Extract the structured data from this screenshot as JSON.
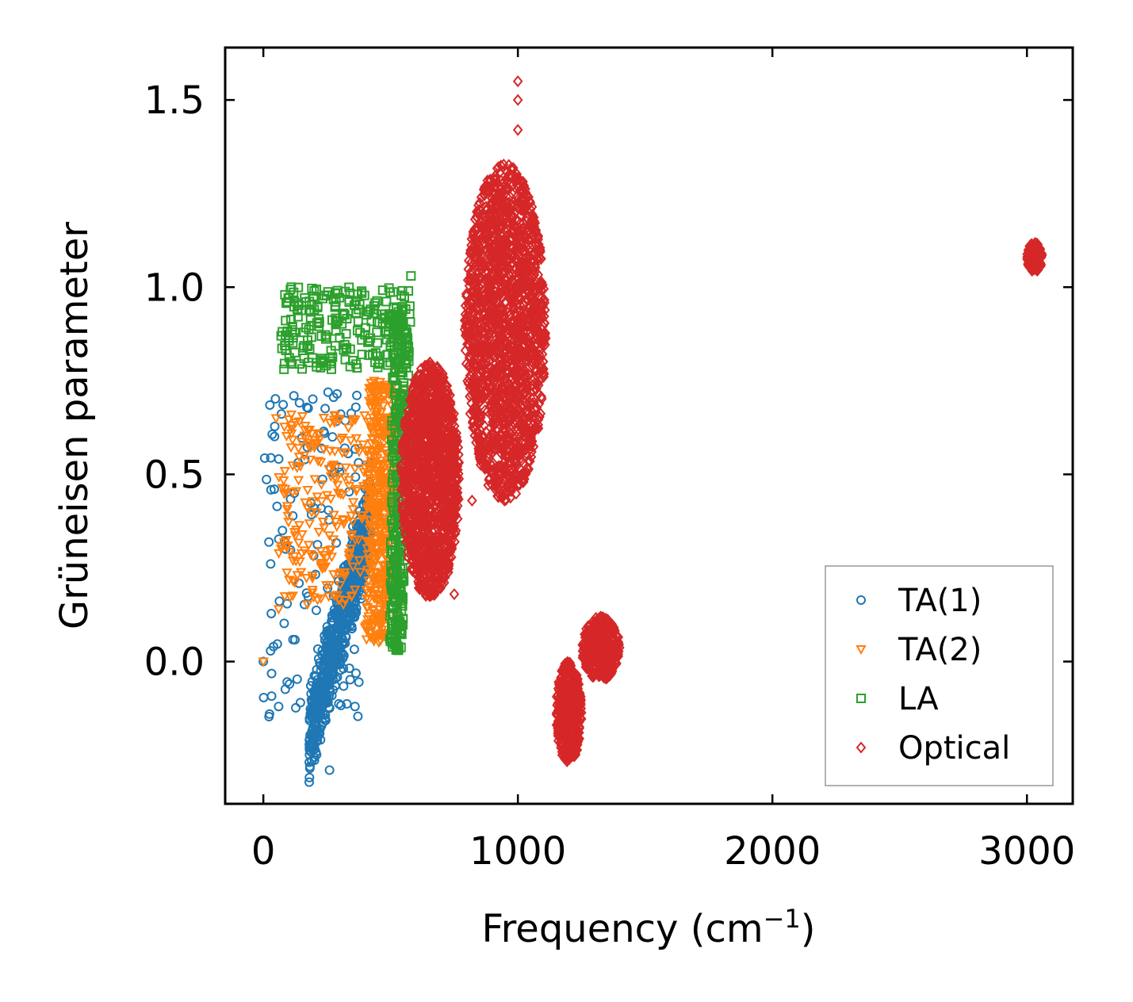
{
  "chart_data": {
    "type": "scatter",
    "title": "",
    "xlabel": "Frequency (cm",
    "xlabel_superscript": "−1",
    "xlabel_suffix": ")",
    "ylabel": "Grüneisen parameter",
    "xlim": [
      -150,
      3180
    ],
    "ylim": [
      -0.38,
      1.64
    ],
    "x_ticks": [
      0,
      1000,
      2000,
      3000
    ],
    "x_tick_labels": [
      "0",
      "1000",
      "2000",
      "3000"
    ],
    "y_ticks": [
      0.0,
      0.5,
      1.0,
      1.5
    ],
    "y_tick_labels": [
      "0.0",
      "0.5",
      "1.0",
      "1.5"
    ],
    "grid": false,
    "legend_position": "bottom-right",
    "series": [
      {
        "name": "TA(1)",
        "marker": "circle",
        "color": "#1f77b4",
        "clusters": [
          {
            "x_range": [
              180,
              420
            ],
            "y_range": [
              -0.29,
              0.48
            ],
            "count": 700,
            "shape": "diagonal"
          },
          {
            "x_range": [
              0,
              380
            ],
            "y_range": [
              -0.15,
              0.72
            ],
            "count": 120,
            "shape": "spread"
          }
        ],
        "points": [
          [
            0,
            0.0
          ],
          [
            40,
            0.04
          ],
          [
            120,
            0.71
          ],
          [
            240,
            0.61
          ],
          [
            320,
            0.57
          ],
          [
            420,
            0.53
          ],
          [
            360,
            -0.12
          ],
          [
            75,
            0.35
          ],
          [
            60,
            -0.12
          ],
          [
            260,
            -0.29
          ]
        ]
      },
      {
        "name": "TA(2)",
        "marker": "triangle-down",
        "color": "#ff7f0e",
        "clusters": [
          {
            "x_range": [
              350,
              540
            ],
            "y_range": [
              0.05,
              0.75
            ],
            "count": 400,
            "shape": "vertical"
          },
          {
            "x_range": [
              60,
              480
            ],
            "y_range": [
              0.15,
              0.66
            ],
            "count": 260,
            "shape": "spread"
          }
        ],
        "points": [
          [
            0,
            0.0
          ],
          [
            50,
            0.65
          ],
          [
            110,
            0.66
          ],
          [
            220,
            0.61
          ],
          [
            60,
            0.14
          ],
          [
            480,
            0.73
          ],
          [
            520,
            0.05
          ]
        ]
      },
      {
        "name": "LA",
        "marker": "square",
        "color": "#2ca02c",
        "clusters": [
          {
            "x_range": [
              470,
              580
            ],
            "y_range": [
              0.03,
              0.95
            ],
            "count": 350,
            "shape": "vertical"
          },
          {
            "x_range": [
              70,
              560
            ],
            "y_range": [
              0.78,
              1.0
            ],
            "count": 220,
            "shape": "spread"
          }
        ],
        "points": [
          [
            110,
            1.0
          ],
          [
            200,
            0.99
          ],
          [
            70,
            0.87
          ],
          [
            160,
            0.81
          ],
          [
            580,
            1.03
          ],
          [
            570,
            0.99
          ],
          [
            530,
            0.03
          ]
        ]
      },
      {
        "name": "Optical",
        "marker": "diamond",
        "color": "#d62728",
        "clusters": [
          {
            "x_range": [
              540,
              770
            ],
            "y_range": [
              0.17,
              0.8
            ],
            "count": 1400,
            "shape": "blob"
          },
          {
            "x_range": [
              790,
              1110
            ],
            "y_range": [
              0.43,
              1.33
            ],
            "count": 1800,
            "shape": "blob"
          },
          {
            "x_range": [
              1150,
              1250
            ],
            "y_range": [
              -0.27,
              0.0
            ],
            "count": 400,
            "shape": "blob"
          },
          {
            "x_range": [
              1250,
              1400
            ],
            "y_range": [
              -0.05,
              0.12
            ],
            "count": 350,
            "shape": "blob"
          },
          {
            "x_range": [
              3000,
              3060
            ],
            "y_range": [
              1.04,
              1.12
            ],
            "count": 120,
            "shape": "blob"
          }
        ],
        "points": [
          [
            1000,
            1.55
          ],
          [
            1000,
            1.5
          ],
          [
            1000,
            1.42
          ],
          [
            990,
            0.78
          ],
          [
            960,
            0.6
          ],
          [
            820,
            0.43
          ],
          [
            750,
            0.18
          ]
        ]
      }
    ]
  }
}
